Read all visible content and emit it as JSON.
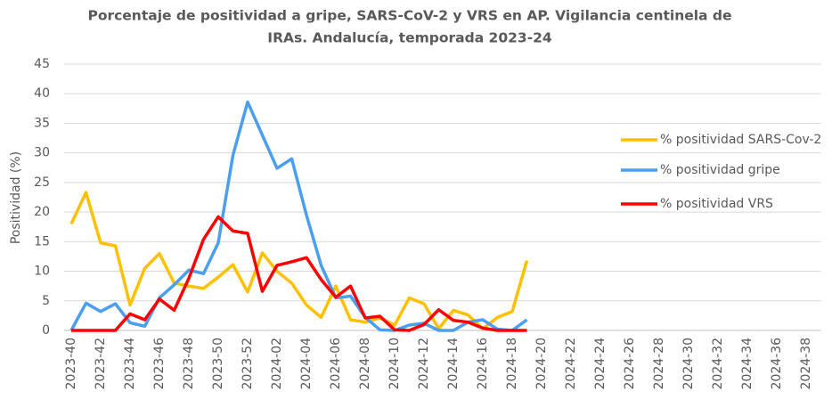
{
  "chart_data": {
    "type": "line",
    "title": [
      "Porcentaje de positividad a gripe, SARS-CoV-2 y VRS en AP. Vigilancia centinela de",
      "IRAs. Andalucía, temporada 2023-24"
    ],
    "y_label": "Positividad (%)",
    "categories": [
      "2023-40",
      null,
      "2023-42",
      null,
      "2023-44",
      null,
      "2023-46",
      null,
      "2023-48",
      null,
      "2023-50",
      null,
      "2023-52",
      null,
      "2024-02",
      null,
      "2024-04",
      null,
      "2024-06",
      null,
      "2024-08",
      null,
      "2024-10",
      null,
      "2024-12",
      null,
      "2024-14",
      null,
      "2024-16",
      null,
      "2024-18",
      null,
      "2024-20",
      null,
      "2024-22",
      null,
      "2024-24",
      null,
      "2024-26",
      null,
      "2024-28",
      null,
      "2024-30",
      null,
      "2024-32",
      null,
      "2024-34",
      null,
      "2024-36",
      null,
      "2024-38",
      null
    ],
    "series": [
      {
        "name": "% positividad SARS-Cov-2",
        "color": "#ffc000",
        "values": [
          18,
          23.3,
          14.8,
          14.3,
          4.3,
          10.5,
          13,
          8,
          7.5,
          7.1,
          9,
          11.1,
          6.5,
          13.1,
          10,
          8,
          4.3,
          2.2,
          7.5,
          1.8,
          1.4,
          2.1,
          0.9,
          5.5,
          4.5,
          0.3,
          3.4,
          2.6,
          0.3,
          2.2,
          3.2,
          11.8,
          null,
          null,
          null,
          null,
          null,
          null,
          null,
          null,
          null,
          null,
          null,
          null,
          null,
          null,
          null,
          null,
          null,
          null,
          null,
          null
        ]
      },
      {
        "name": "% positividad gripe",
        "color": "#4a9ff0",
        "values": [
          0,
          4.6,
          3.2,
          4.5,
          1.3,
          0.7,
          5.5,
          7.7,
          10.2,
          9.6,
          14.8,
          29.6,
          38.6,
          33,
          27.4,
          29,
          19.5,
          11,
          5.5,
          5.8,
          2.2,
          0.1,
          0,
          0.9,
          1.2,
          0,
          0,
          1.4,
          1.8,
          0.2,
          0,
          1.8,
          null,
          null,
          null,
          null,
          null,
          null,
          null,
          null,
          null,
          null,
          null,
          null,
          null,
          null,
          null,
          null,
          null,
          null,
          null,
          null
        ]
      },
      {
        "name": "% positividad VRS",
        "color": "#ff0000",
        "values": [
          0,
          0,
          0,
          0,
          2.8,
          1.8,
          5.3,
          3.4,
          8.8,
          15.4,
          19.2,
          16.8,
          16.4,
          6.6,
          11,
          11.6,
          12.3,
          8.6,
          5.6,
          7.5,
          2.1,
          2.4,
          0.1,
          0,
          1,
          3.5,
          1.7,
          1.4,
          0.4,
          0,
          0,
          0,
          null,
          null,
          null,
          null,
          null,
          null,
          null,
          null,
          null,
          null,
          null,
          null,
          null,
          null,
          null,
          null,
          null,
          null,
          null,
          null
        ]
      }
    ],
    "ylim": [
      0,
      45
    ],
    "yticks": [
      0,
      5,
      10,
      15,
      20,
      25,
      30,
      35,
      40,
      45
    ],
    "grid": true,
    "legend": "right"
  }
}
